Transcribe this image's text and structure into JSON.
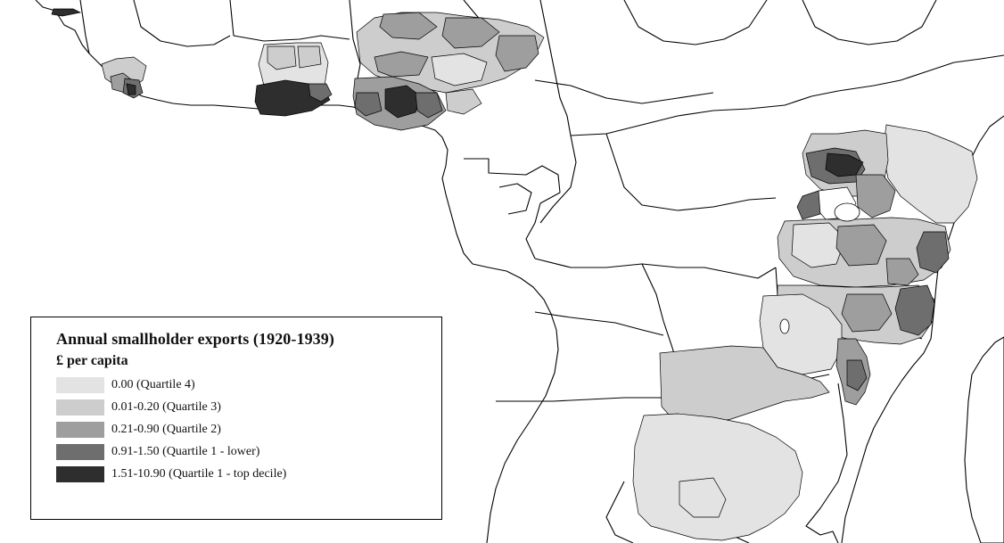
{
  "legend": {
    "title": "Annual smallholder exports  (1920-1939)",
    "subtitle": "£ per capita",
    "items": [
      {
        "label": "0.00 (Quartile 4)",
        "color": "#e3e3e3"
      },
      {
        "label": "0.01-0.20 (Quartile 3)",
        "color": "#cdcdcd"
      },
      {
        "label": "0.21-0.90 (Quartile 2)",
        "color": "#9e9e9e"
      },
      {
        "label": "0.91-1.50 (Quartile 1 - lower)",
        "color": "#6e6e6e"
      },
      {
        "label": "1.51-10.90 (Quartile 1 - top decile)",
        "color": "#2e2e2e"
      }
    ]
  },
  "map": {
    "region": "Sub-Saharan Africa (West and East Africa colonial districts)",
    "border_color": "#000000",
    "background_color": "#ffffff"
  }
}
